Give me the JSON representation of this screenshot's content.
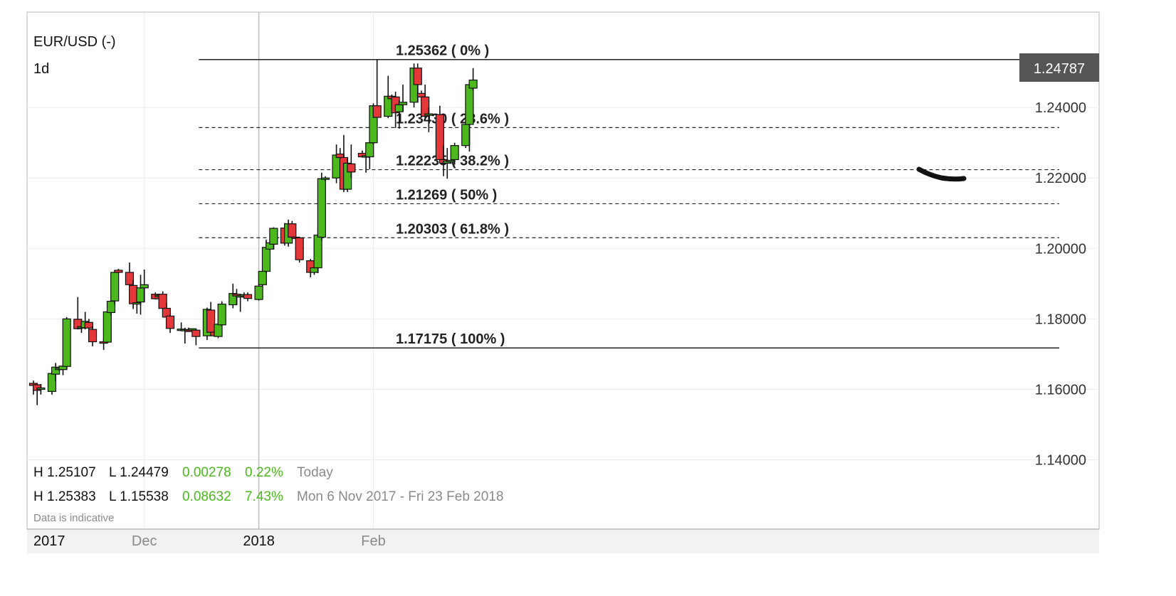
{
  "header": {
    "symbol": "EUR/USD (-)",
    "interval": "1d"
  },
  "last_price": "1.24787",
  "stats": {
    "today": {
      "high": "H 1.25107",
      "low": "L 1.24479",
      "change": "0.00278",
      "change_pct": "0.22%",
      "label": "Today"
    },
    "range": {
      "high": "H 1.25383",
      "low": "L 1.15538",
      "change": "0.08632",
      "change_pct": "7.43%",
      "label": "Mon 6 Nov 2017 - Fri 23 Feb 2018"
    },
    "note": "Data is indicative"
  },
  "colors": {
    "up": "#4cb81e",
    "down": "#e3373a",
    "positive_text": "#4cb81e",
    "price_badge": "#555555"
  },
  "chart_data": {
    "type": "candlestick",
    "ylim": [
      1.13,
      1.2578
    ],
    "y_ticks": [
      {
        "value": 1.24,
        "label": "1.24000"
      },
      {
        "value": 1.22,
        "label": "1.22000"
      },
      {
        "value": 1.2,
        "label": "1.20000"
      },
      {
        "value": 1.18,
        "label": "1.18000"
      },
      {
        "value": 1.16,
        "label": "1.16000"
      },
      {
        "value": 1.14,
        "label": "1.14000"
      }
    ],
    "x_ticks": [
      {
        "date": "2017-11-01",
        "label": "2017",
        "bold": true
      },
      {
        "date": "2017-12-01",
        "label": "Dec",
        "bold": false
      },
      {
        "date": "2018-01-01",
        "label": "2018",
        "bold": true
      },
      {
        "date": "2018-02-01",
        "label": "Feb",
        "bold": false
      }
    ],
    "fibonacci": [
      {
        "value": 1.25362,
        "label": "1.25362 ( 0% )",
        "style": "solid"
      },
      {
        "value": 1.2343,
        "label": "1.23430 ( 23.6% )",
        "style": "dashed"
      },
      {
        "value": 1.22235,
        "label": "1.22235 ( 38.2% )",
        "style": "dashed"
      },
      {
        "value": 1.21269,
        "label": "1.21269 ( 50% )",
        "style": "dashed"
      },
      {
        "value": 1.20303,
        "label": "1.20303 ( 61.8% )",
        "style": "dashed"
      },
      {
        "value": 1.17175,
        "label": "1.17175 ( 100% )",
        "style": "solid"
      }
    ],
    "candles": [
      {
        "date": "2017-11-01",
        "o": 1.1617,
        "h": 1.1625,
        "l": 1.1585,
        "c": 1.1611
      },
      {
        "date": "2017-11-02",
        "o": 1.1613,
        "h": 1.1618,
        "l": 1.1555,
        "c": 1.1597
      },
      {
        "date": "2017-11-03",
        "o": 1.1602,
        "h": 1.1615,
        "l": 1.1585,
        "c": 1.1604
      },
      {
        "date": "2017-11-06",
        "o": 1.1594,
        "h": 1.165,
        "l": 1.1585,
        "c": 1.1645
      },
      {
        "date": "2017-11-07",
        "o": 1.1643,
        "h": 1.1675,
        "l": 1.1623,
        "c": 1.1663
      },
      {
        "date": "2017-11-08",
        "o": 1.1656,
        "h": 1.1665,
        "l": 1.1652,
        "c": 1.166
      },
      {
        "date": "2017-11-09",
        "o": 1.1656,
        "h": 1.167,
        "l": 1.164,
        "c": 1.1666
      },
      {
        "date": "2017-11-10",
        "o": 1.1665,
        "h": 1.1805,
        "l": 1.1658,
        "c": 1.18
      },
      {
        "date": "2017-11-13",
        "o": 1.1799,
        "h": 1.1862,
        "l": 1.177,
        "c": 1.1772
      },
      {
        "date": "2017-11-14",
        "o": 1.1775,
        "h": 1.179,
        "l": 1.176,
        "c": 1.1778
      },
      {
        "date": "2017-11-15",
        "o": 1.1775,
        "h": 1.182,
        "l": 1.177,
        "c": 1.1793
      },
      {
        "date": "2017-11-16",
        "o": 1.179,
        "h": 1.18,
        "l": 1.1765,
        "c": 1.1774
      },
      {
        "date": "2017-11-17",
        "o": 1.177,
        "h": 1.178,
        "l": 1.1722,
        "c": 1.1735
      },
      {
        "date": "2017-11-20",
        "o": 1.1735,
        "h": 1.1745,
        "l": 1.1712,
        "c": 1.1734
      },
      {
        "date": "2017-11-21",
        "o": 1.1734,
        "h": 1.1825,
        "l": 1.1732,
        "c": 1.182
      },
      {
        "date": "2017-11-22",
        "o": 1.1818,
        "h": 1.1855,
        "l": 1.181,
        "c": 1.185
      },
      {
        "date": "2017-11-23",
        "o": 1.1851,
        "h": 1.1938,
        "l": 1.184,
        "c": 1.1932
      },
      {
        "date": "2017-11-24",
        "o": 1.1938,
        "h": 1.1942,
        "l": 1.193,
        "c": 1.1932
      },
      {
        "date": "2017-11-27",
        "o": 1.1932,
        "h": 1.196,
        "l": 1.189,
        "c": 1.1897
      },
      {
        "date": "2017-11-28",
        "o": 1.1895,
        "h": 1.191,
        "l": 1.1828,
        "c": 1.1843
      },
      {
        "date": "2017-11-29",
        "o": 1.1845,
        "h": 1.1862,
        "l": 1.1815,
        "c": 1.1846
      },
      {
        "date": "2017-11-30",
        "o": 1.1848,
        "h": 1.1925,
        "l": 1.1812,
        "c": 1.1888
      },
      {
        "date": "2017-12-01",
        "o": 1.1888,
        "h": 1.194,
        "l": 1.1848,
        "c": 1.1897
      },
      {
        "date": "2017-12-04",
        "o": 1.187,
        "h": 1.1875,
        "l": 1.1855,
        "c": 1.1857
      },
      {
        "date": "2017-12-05",
        "o": 1.1867,
        "h": 1.187,
        "l": 1.1828,
        "c": 1.1867
      },
      {
        "date": "2017-12-06",
        "o": 1.187,
        "h": 1.1878,
        "l": 1.1825,
        "c": 1.183
      },
      {
        "date": "2017-12-07",
        "o": 1.183,
        "h": 1.1845,
        "l": 1.1778,
        "c": 1.1805
      },
      {
        "date": "2017-12-08",
        "o": 1.1808,
        "h": 1.1812,
        "l": 1.176,
        "c": 1.1773
      },
      {
        "date": "2017-12-11",
        "o": 1.177,
        "h": 1.179,
        "l": 1.1767,
        "c": 1.1771
      },
      {
        "date": "2017-12-12",
        "o": 1.177,
        "h": 1.1775,
        "l": 1.173,
        "c": 1.177
      },
      {
        "date": "2017-12-13",
        "o": 1.1768,
        "h": 1.1775,
        "l": 1.1764,
        "c": 1.1766
      },
      {
        "date": "2017-12-14",
        "o": 1.177,
        "h": 1.1775,
        "l": 1.1775,
        "c": 1.1772
      },
      {
        "date": "2017-12-15",
        "o": 1.1768,
        "h": 1.177,
        "l": 1.1725,
        "c": 1.175
      },
      {
        "date": "2017-12-18",
        "o": 1.1752,
        "h": 1.1832,
        "l": 1.174,
        "c": 1.1827
      },
      {
        "date": "2017-12-19",
        "o": 1.1825,
        "h": 1.1848,
        "l": 1.176,
        "c": 1.1762
      },
      {
        "date": "2017-12-20",
        "o": 1.1762,
        "h": 1.1768,
        "l": 1.175,
        "c": 1.1752
      },
      {
        "date": "2017-12-21",
        "o": 1.175,
        "h": 1.1795,
        "l": 1.1745,
        "c": 1.1785
      },
      {
        "date": "2017-12-22",
        "o": 1.1783,
        "h": 1.185,
        "l": 1.1778,
        "c": 1.1842
      },
      {
        "date": "2017-12-25",
        "o": 1.184,
        "h": 1.19,
        "l": 1.183,
        "c": 1.1872
      },
      {
        "date": "2017-12-26",
        "o": 1.187,
        "h": 1.1885,
        "l": 1.184,
        "c": 1.1865
      },
      {
        "date": "2017-12-27",
        "o": 1.1865,
        "h": 1.187,
        "l": 1.182,
        "c": 1.1866
      },
      {
        "date": "2017-12-28",
        "o": 1.1866,
        "h": 1.1875,
        "l": 1.1865,
        "c": 1.1869
      },
      {
        "date": "2017-12-29",
        "o": 1.1869,
        "h": 1.1875,
        "l": 1.185,
        "c": 1.1858
      },
      {
        "date": "2018-01-01",
        "o": 1.1855,
        "h": 1.19,
        "l": 1.1852,
        "c": 1.1893
      },
      {
        "date": "2018-01-02",
        "o": 1.1897,
        "h": 1.1945,
        "l": 1.1893,
        "c": 1.1935
      },
      {
        "date": "2018-01-03",
        "o": 1.1935,
        "h": 1.2025,
        "l": 1.193,
        "c": 1.2003
      },
      {
        "date": "2018-01-04",
        "o": 1.1998,
        "h": 1.2025,
        "l": 1.1995,
        "c": 1.2016
      },
      {
        "date": "2018-01-05",
        "o": 1.2012,
        "h": 1.206,
        "l": 1.1998,
        "c": 1.2057
      },
      {
        "date": "2018-01-08",
        "o": 1.2058,
        "h": 1.2072,
        "l": 1.2008,
        "c": 1.2015
      },
      {
        "date": "2018-01-09",
        "o": 1.2015,
        "h": 1.2082,
        "l": 1.2005,
        "c": 1.207
      },
      {
        "date": "2018-01-10",
        "o": 1.207,
        "h": 1.2078,
        "l": 1.2028,
        "c": 1.2032
      },
      {
        "date": "2018-01-11",
        "o": 1.2032,
        "h": 1.2033,
        "l": 1.2029,
        "c": 1.2031
      },
      {
        "date": "2018-01-12",
        "o": 1.203,
        "h": 1.2031,
        "l": 1.196,
        "c": 1.1968
      },
      {
        "date": "2018-01-15",
        "o": 1.1965,
        "h": 1.197,
        "l": 1.1918,
        "c": 1.1932
      },
      {
        "date": "2018-01-16",
        "o": 1.1932,
        "h": 1.195,
        "l": 1.1925,
        "c": 1.1945
      },
      {
        "date": "2018-01-17",
        "o": 1.1945,
        "h": 1.2055,
        "l": 1.193,
        "c": 1.2038
      },
      {
        "date": "2018-01-18",
        "o": 1.2032,
        "h": 1.2215,
        "l": 1.2022,
        "c": 1.2198
      },
      {
        "date": "2018-01-19",
        "o": 1.2198,
        "h": 1.2205,
        "l": 1.2192,
        "c": 1.22
      },
      {
        "date": "2018-01-22",
        "o": 1.22,
        "h": 1.2295,
        "l": 1.2185,
        "c": 1.2265
      },
      {
        "date": "2018-01-23",
        "o": 1.2268,
        "h": 1.2285,
        "l": 1.2205,
        "c": 1.2258
      },
      {
        "date": "2018-01-24",
        "o": 1.2258,
        "h": 1.2322,
        "l": 1.216,
        "c": 1.2168
      },
      {
        "date": "2018-01-25",
        "o": 1.2168,
        "h": 1.2255,
        "l": 1.216,
        "c": 1.2242
      },
      {
        "date": "2018-01-26",
        "o": 1.224,
        "h": 1.2295,
        "l": 1.22,
        "c": 1.2217
      },
      {
        "date": "2018-01-29",
        "o": 1.227,
        "h": 1.2278,
        "l": 1.2258,
        "c": 1.226
      },
      {
        "date": "2018-01-30",
        "o": 1.2262,
        "h": 1.2268,
        "l": 1.2215,
        "c": 1.2263
      },
      {
        "date": "2018-01-31",
        "o": 1.226,
        "h": 1.231,
        "l": 1.2225,
        "c": 1.23
      },
      {
        "date": "2018-02-01",
        "o": 1.23,
        "h": 1.2412,
        "l": 1.2295,
        "c": 1.2405
      },
      {
        "date": "2018-02-02",
        "o": 1.2405,
        "h": 1.2535,
        "l": 1.2375,
        "c": 1.2372
      },
      {
        "date": "2018-02-05",
        "o": 1.2375,
        "h": 1.249,
        "l": 1.237,
        "c": 1.2432
      },
      {
        "date": "2018-02-06",
        "o": 1.2432,
        "h": 1.2437,
        "l": 1.2419,
        "c": 1.2425
      },
      {
        "date": "2018-02-07",
        "o": 1.243,
        "h": 1.2445,
        "l": 1.2342,
        "c": 1.2385
      },
      {
        "date": "2018-02-08",
        "o": 1.2388,
        "h": 1.242,
        "l": 1.234,
        "c": 1.2408
      },
      {
        "date": "2018-02-09",
        "o": 1.2408,
        "h": 1.2465,
        "l": 1.239,
        "c": 1.2415
      },
      {
        "date": "2018-02-12",
        "o": 1.2415,
        "h": 1.2525,
        "l": 1.24,
        "c": 1.2512
      },
      {
        "date": "2018-02-13",
        "o": 1.2512,
        "h": 1.2525,
        "l": 1.2415,
        "c": 1.2465
      },
      {
        "date": "2018-02-14",
        "o": 1.244,
        "h": 1.2448,
        "l": 1.242,
        "c": 1.243
      },
      {
        "date": "2018-02-15",
        "o": 1.243,
        "h": 1.2465,
        "l": 1.2365,
        "c": 1.2375
      },
      {
        "date": "2018-02-16",
        "o": 1.2378,
        "h": 1.24,
        "l": 1.233,
        "c": 1.2382
      },
      {
        "date": "2018-02-19",
        "o": 1.238,
        "h": 1.2405,
        "l": 1.2248,
        "c": 1.2252
      },
      {
        "date": "2018-02-20",
        "o": 1.2252,
        "h": 1.2292,
        "l": 1.2205,
        "c": 1.2242
      },
      {
        "date": "2018-02-21",
        "o": 1.2242,
        "h": 1.2285,
        "l": 1.2198,
        "c": 1.2248
      },
      {
        "date": "2018-02-22",
        "o": 1.2248,
        "h": 1.2252,
        "l": 1.224,
        "c": 1.225
      },
      {
        "date": "2018-02-23",
        "o": 1.2252,
        "h": 1.23,
        "l": 1.2238,
        "c": 1.2292
      },
      {
        "date": "2018-02-26",
        "o": 1.2292,
        "h": 1.237,
        "l": 1.2285,
        "c": 1.2352
      },
      {
        "date": "2018-02-27",
        "o": 1.2352,
        "h": 1.2475,
        "l": 1.2275,
        "c": 1.2465
      },
      {
        "date": "2018-02-28",
        "o": 1.2455,
        "h": 1.2512,
        "l": 1.2448,
        "c": 1.2478
      }
    ]
  }
}
